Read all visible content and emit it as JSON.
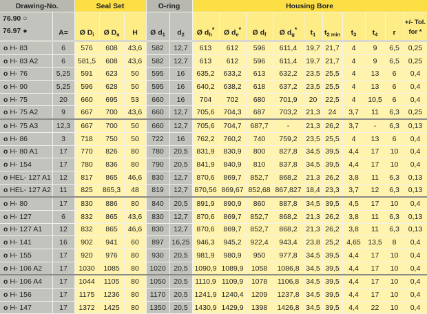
{
  "header": {
    "drawing_no": "Drawing-No.",
    "seal_set": "Seal Set",
    "o_ring": "O-ring",
    "housing_bore": "Housing Bore",
    "series_open": "76.90",
    "series_filled": "76.97",
    "series_open_icon": "circle-outline-icon",
    "series_filled_icon": "filled-circle-icon",
    "columns": [
      {
        "main": "A=",
        "sub": "",
        "suf": ""
      },
      {
        "main": "Ø D",
        "sub": "i",
        "suf": ""
      },
      {
        "main": "Ø D",
        "sub": "a",
        "suf": ""
      },
      {
        "main": "H",
        "sub": "",
        "suf": ""
      },
      {
        "main": "Ø d",
        "sub": "1",
        "suf": ""
      },
      {
        "main": "d",
        "sub": "2",
        "suf": ""
      },
      {
        "main": "Ø d",
        "sub": "h",
        "suf": "*"
      },
      {
        "main": "Ø d",
        "sub": "e",
        "suf": "*"
      },
      {
        "main": "Ø d",
        "sub": "f",
        "suf": ""
      },
      {
        "main": "Ø d",
        "sub": "g",
        "suf": "*"
      },
      {
        "main": "t",
        "sub": "1",
        "suf": ""
      },
      {
        "main": "t",
        "sub": "2 min",
        "suf": ""
      },
      {
        "main": "t",
        "sub": "3",
        "suf": ""
      },
      {
        "main": "t",
        "sub": "4",
        "suf": ""
      },
      {
        "main": "r",
        "sub": "",
        "suf": ""
      },
      {
        "main": "+/- Tol.",
        "sub": "",
        "suf": "for *"
      }
    ]
  },
  "colors": {
    "grey": "#c3c3bd",
    "yellow_header": "#fbdf45",
    "yellow_cell": "#fff3ad"
  },
  "rows": [
    {
      "name": "H- 83",
      "v": [
        "6",
        "576",
        "608",
        "43,6",
        "582",
        "12,7",
        "613",
        "612",
        "596",
        "611,4",
        "19,7",
        "21,7",
        "4",
        "9",
        "6,5",
        "0,25"
      ]
    },
    {
      "name": "H- 83 A2",
      "v": [
        "6",
        "581,5",
        "608",
        "43,6",
        "582",
        "12,7",
        "613",
        "612",
        "596",
        "611,4",
        "19,7",
        "21,7",
        "4",
        "9",
        "6,5",
        "0,25"
      ]
    },
    {
      "name": "H- 76",
      "v": [
        "5,25",
        "591",
        "623",
        "50",
        "595",
        "16",
        "635,2",
        "633,2",
        "613",
        "632,2",
        "23,5",
        "25,5",
        "4",
        "13",
        "6",
        "0,4"
      ]
    },
    {
      "name": "H- 90",
      "v": [
        "5,25",
        "596",
        "628",
        "50",
        "595",
        "16",
        "640,2",
        "638,2",
        "618",
        "637,2",
        "23,5",
        "25,5",
        "4",
        "13",
        "6",
        "0,4"
      ]
    },
    {
      "name": "H- 75",
      "v": [
        "20",
        "660",
        "695",
        "53",
        "660",
        "16",
        "704",
        "702",
        "680",
        "701,9",
        "20",
        "22,5",
        "4",
        "10,5",
        "6",
        "0,4"
      ]
    },
    {
      "name": "H- 75 A2",
      "v": [
        "9",
        "667",
        "700",
        "43,6",
        "660",
        "12,7",
        "705,6",
        "704,3",
        "687",
        "703,2",
        "21,3",
        "24",
        "3,7",
        "11",
        "6,3",
        "0,25"
      ],
      "sep": true
    },
    {
      "name": "H- 75 A3",
      "v": [
        "12,3",
        "667",
        "700",
        "50",
        "660",
        "12,7",
        "705,6",
        "704,7",
        "687,7",
        "-",
        "21,3",
        "26,2",
        "3,7",
        "-",
        "6,3",
        "0,13"
      ]
    },
    {
      "name": "H- 86",
      "v": [
        "3",
        "718",
        "750",
        "50",
        "722",
        "16",
        "762,2",
        "760,2",
        "740",
        "759,2",
        "23,5",
        "25,5",
        "4",
        "13",
        "6",
        "0,4"
      ]
    },
    {
      "name": "H- 80 A1",
      "v": [
        "17",
        "770",
        "826",
        "80",
        "780",
        "20,5",
        "831,9",
        "830,9",
        "800",
        "827,8",
        "34,5",
        "39,5",
        "4,4",
        "17",
        "10",
        "0,4"
      ]
    },
    {
      "name": "H- 154",
      "v": [
        "17",
        "780",
        "836",
        "80",
        "790",
        "20,5",
        "841,9",
        "840,9",
        "810",
        "837,8",
        "34,5",
        "39,5",
        "4,4",
        "17",
        "10",
        "0,4"
      ]
    },
    {
      "name": "HEL- 127 A1",
      "v": [
        "12",
        "817",
        "865",
        "46,6",
        "830",
        "12,7",
        "870,6",
        "869,7",
        "852,7",
        "868,2",
        "21,3",
        "26,2",
        "3,8",
        "11",
        "6,3",
        "0,13"
      ]
    },
    {
      "name": "HEL- 127 A2",
      "v": [
        "11",
        "825",
        "865,3",
        "48",
        "819",
        "12,7",
        "870,56",
        "869,67",
        "852,68",
        "867,827",
        "18,4",
        "23,3",
        "3,7",
        "12",
        "6,3",
        "0,13"
      ],
      "sep": true
    },
    {
      "name": "H- 80",
      "v": [
        "17",
        "830",
        "886",
        "80",
        "840",
        "20,5",
        "891,9",
        "890,9",
        "860",
        "887,8",
        "34,5",
        "39,5",
        "4,5",
        "17",
        "10",
        "0,4"
      ]
    },
    {
      "name": "H- 127",
      "v": [
        "6",
        "832",
        "865",
        "43,6",
        "830",
        "12,7",
        "870,6",
        "869,7",
        "852,7",
        "868,2",
        "21,3",
        "26,2",
        "3,8",
        "11",
        "6,3",
        "0,13"
      ]
    },
    {
      "name": "H- 127 A1",
      "v": [
        "12",
        "832",
        "865",
        "46,6",
        "830",
        "12,7",
        "870,6",
        "869,7",
        "852,7",
        "868,2",
        "21,3",
        "26,2",
        "3,8",
        "11",
        "6,3",
        "0,13"
      ]
    },
    {
      "name": "H- 141",
      "v": [
        "16",
        "902",
        "941",
        "60",
        "897",
        "16,25",
        "946,3",
        "945,2",
        "922,4",
        "943,4",
        "23,8",
        "25,2",
        "4,65",
        "13,5",
        "8",
        "0,4"
      ]
    },
    {
      "name": "H- 155",
      "v": [
        "17",
        "920",
        "976",
        "80",
        "930",
        "20,5",
        "981,9",
        "980,9",
        "950",
        "977,8",
        "34,5",
        "39,5",
        "4,4",
        "17",
        "10",
        "0,4"
      ]
    },
    {
      "name": "H- 106 A2",
      "v": [
        "17",
        "1030",
        "1085",
        "80",
        "1020",
        "20,5",
        "1090,9",
        "1089,9",
        "1058",
        "1086,8",
        "34,5",
        "39,5",
        "4,4",
        "17",
        "10",
        "0,4"
      ],
      "sep": true
    },
    {
      "name": "H- 106 A4",
      "v": [
        "17",
        "1044",
        "1105",
        "80",
        "1050",
        "20,5",
        "1110,9",
        "1109,9",
        "1078",
        "1106,8",
        "34,5",
        "39,5",
        "4,4",
        "17",
        "10",
        "0,4"
      ]
    },
    {
      "name": "H- 156",
      "v": [
        "17",
        "1175",
        "1236",
        "80",
        "1170",
        "20,5",
        "1241,9",
        "1240,4",
        "1209",
        "1237,8",
        "34,5",
        "39,5",
        "4,4",
        "17",
        "10",
        "0,4"
      ]
    },
    {
      "name": "H- 147",
      "v": [
        "17",
        "1372",
        "1425",
        "80",
        "1350",
        "20,5",
        "1430,9",
        "1429,9",
        "1398",
        "1426,8",
        "34,5",
        "39,5",
        "4,4",
        "22",
        "10",
        "0,4"
      ]
    }
  ]
}
